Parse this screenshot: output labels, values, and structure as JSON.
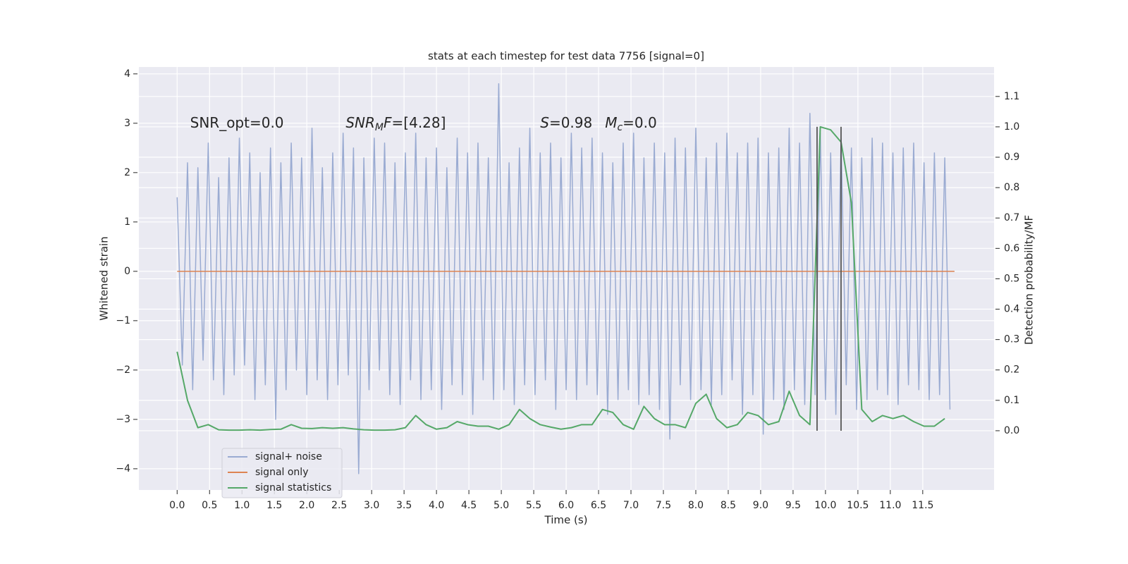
{
  "chart_data": {
    "type": "line",
    "title": "stats at each timestep for test data 7756 [signal=0]",
    "xlabel": "Time (s)",
    "ylabel": "Whitened strain",
    "y2label": "Detection probability/MF",
    "xlim": [
      -0.59,
      12.6
    ],
    "ylim": [
      -4.43,
      4.14
    ],
    "y2lim": [
      -0.195,
      1.197
    ],
    "xticks": [
      {
        "value": 0,
        "label": "0.0"
      },
      {
        "value": 0.5,
        "label": "0.5"
      },
      {
        "value": 1,
        "label": "1.0"
      },
      {
        "value": 1.5,
        "label": "1.5"
      },
      {
        "value": 2,
        "label": "2.0"
      },
      {
        "value": 2.5,
        "label": "2.5"
      },
      {
        "value": 3,
        "label": "3.0"
      },
      {
        "value": 3.5,
        "label": "3.5"
      },
      {
        "value": 4,
        "label": "4.0"
      },
      {
        "value": 4.5,
        "label": "4.5"
      },
      {
        "value": 5,
        "label": "5.0"
      },
      {
        "value": 5.5,
        "label": "5.5"
      },
      {
        "value": 6,
        "label": "6.0"
      },
      {
        "value": 6.5,
        "label": "6.5"
      },
      {
        "value": 7,
        "label": "7.0"
      },
      {
        "value": 7.5,
        "label": "7.5"
      },
      {
        "value": 8,
        "label": "8.0"
      },
      {
        "value": 8.5,
        "label": "8.5"
      },
      {
        "value": 9,
        "label": "9.0"
      },
      {
        "value": 9.5,
        "label": "9.5"
      },
      {
        "value": 10,
        "label": "10.0"
      },
      {
        "value": 10.5,
        "label": "10.5"
      },
      {
        "value": 11,
        "label": "11.0"
      },
      {
        "value": 11.5,
        "label": "11.5"
      }
    ],
    "yticks": [
      {
        "value": -4,
        "label": "−4"
      },
      {
        "value": -3,
        "label": "−3"
      },
      {
        "value": -2,
        "label": "−2"
      },
      {
        "value": -1,
        "label": "−1"
      },
      0,
      1,
      2,
      3,
      4
    ],
    "y2ticks": [
      {
        "value": 0,
        "label": "0.0"
      },
      {
        "value": 0.1,
        "label": "0.1"
      },
      {
        "value": 0.2,
        "label": "0.2"
      },
      {
        "value": 0.3,
        "label": "0.3"
      },
      {
        "value": 0.4,
        "label": "0.4"
      },
      {
        "value": 0.5,
        "label": "0.5"
      },
      {
        "value": 0.6,
        "label": "0.6"
      },
      {
        "value": 0.7,
        "label": "0.7"
      },
      {
        "value": 0.8,
        "label": "0.8"
      },
      {
        "value": 0.9,
        "label": "0.9"
      },
      {
        "value": 1,
        "label": "1.0"
      },
      {
        "value": 1.1,
        "label": "1.1"
      }
    ],
    "grid": true,
    "legend": "lower left",
    "series": [
      {
        "name": "signal+ noise",
        "color": "#9aabd2",
        "x": [
          0,
          0.08,
          0.16,
          0.24,
          0.32,
          0.4,
          0.48,
          0.56,
          0.64,
          0.72,
          0.8,
          0.88,
          0.96,
          1.04,
          1.12,
          1.2,
          1.28,
          1.36,
          1.44,
          1.52,
          1.6,
          1.68,
          1.76,
          1.84,
          1.92,
          2,
          2.08,
          2.16,
          2.24,
          2.32,
          2.4,
          2.48,
          2.56,
          2.64,
          2.72,
          2.8,
          2.88,
          2.96,
          3.04,
          3.12,
          3.2,
          3.28,
          3.36,
          3.44,
          3.52,
          3.6,
          3.68,
          3.76,
          3.84,
          3.92,
          4,
          4.08,
          4.16,
          4.24,
          4.32,
          4.4,
          4.48,
          4.56,
          4.64,
          4.72,
          4.8,
          4.88,
          4.96,
          5.04,
          5.12,
          5.2,
          5.28,
          5.36,
          5.44,
          5.52,
          5.6,
          5.68,
          5.76,
          5.84,
          5.92,
          6,
          6.08,
          6.16,
          6.24,
          6.32,
          6.4,
          6.48,
          6.56,
          6.64,
          6.72,
          6.8,
          6.88,
          6.96,
          7.04,
          7.12,
          7.2,
          7.28,
          7.36,
          7.44,
          7.52,
          7.6,
          7.68,
          7.76,
          7.84,
          7.92,
          8,
          8.08,
          8.16,
          8.24,
          8.32,
          8.4,
          8.48,
          8.56,
          8.64,
          8.72,
          8.8,
          8.88,
          8.96,
          9.04,
          9.12,
          9.2,
          9.28,
          9.36,
          9.44,
          9.52,
          9.6,
          9.68,
          9.76,
          9.84,
          9.92,
          10,
          10.08,
          10.16,
          10.24,
          10.32,
          10.4,
          10.48,
          10.56,
          10.64,
          10.72,
          10.8,
          10.88,
          10.96,
          11.04,
          11.12,
          11.2,
          11.28,
          11.36,
          11.44,
          11.52,
          11.6,
          11.68,
          11.76,
          11.84,
          11.92
        ],
        "values": [
          1.5,
          -1.9,
          2.2,
          -2.4,
          2.1,
          -1.8,
          2.6,
          -2.2,
          1.9,
          -2.5,
          2.3,
          -2.1,
          2.7,
          -1.9,
          2.4,
          -2.6,
          2.0,
          -2.3,
          2.5,
          -3.0,
          2.2,
          -2.4,
          2.6,
          -2.0,
          2.3,
          -2.5,
          2.9,
          -2.2,
          2.1,
          -2.6,
          2.4,
          -2.3,
          2.8,
          -2.1,
          2.5,
          -4.1,
          2.3,
          -2.4,
          2.7,
          -2.0,
          2.6,
          -2.5,
          2.2,
          -2.7,
          2.4,
          -2.2,
          2.8,
          -2.6,
          2.3,
          -2.4,
          2.5,
          -2.8,
          2.1,
          -2.3,
          2.7,
          -2.5,
          2.4,
          -2.9,
          2.6,
          -2.2,
          2.3,
          -2.6,
          3.8,
          -2.4,
          2.2,
          -2.7,
          2.5,
          -2.3,
          2.9,
          -2.5,
          2.4,
          -2.2,
          2.6,
          -2.8,
          2.3,
          -2.4,
          2.8,
          -2.6,
          2.5,
          -2.3,
          2.7,
          -2.5,
          2.4,
          -2.9,
          2.2,
          -2.6,
          2.6,
          -2.4,
          2.8,
          -2.7,
          2.3,
          -2.5,
          2.6,
          -2.8,
          2.4,
          -3.4,
          2.7,
          -2.3,
          2.5,
          -2.6,
          2.9,
          -2.4,
          2.3,
          -2.7,
          2.6,
          -2.5,
          2.8,
          -2.2,
          2.4,
          -2.9,
          2.6,
          -2.5,
          2.7,
          -3.3,
          2.4,
          -2.6,
          2.5,
          -2.8,
          2.9,
          -2.4,
          2.6,
          -2.7,
          3.2,
          -2.5,
          2.8,
          -2.6,
          2.4,
          -2.9,
          2.7,
          -2.3,
          2.5,
          -2.8,
          2.3,
          -2.6,
          2.7,
          -2.4,
          2.6,
          -2.5,
          2.4,
          -2.7,
          2.5,
          -2.3,
          2.6,
          -2.4,
          2.2,
          -2.6,
          2.4,
          -2.5,
          2.3,
          -2.8
        ]
      },
      {
        "name": "signal only",
        "color": "#dd8452",
        "x": [
          0,
          11.99
        ],
        "values": [
          0,
          0
        ]
      },
      {
        "name": "signal statistics",
        "color": "#55a868",
        "axis": "y2",
        "x": [
          0,
          0.16,
          0.32,
          0.48,
          0.64,
          0.8,
          0.96,
          1.12,
          1.28,
          1.44,
          1.6,
          1.76,
          1.92,
          2.08,
          2.24,
          2.4,
          2.56,
          2.72,
          2.88,
          3.04,
          3.2,
          3.36,
          3.52,
          3.68,
          3.84,
          4,
          4.16,
          4.32,
          4.48,
          4.64,
          4.8,
          4.96,
          5.12,
          5.28,
          5.44,
          5.6,
          5.76,
          5.92,
          6.08,
          6.24,
          6.4,
          6.56,
          6.72,
          6.88,
          7.04,
          7.2,
          7.36,
          7.52,
          7.68,
          7.84,
          8,
          8.16,
          8.32,
          8.48,
          8.64,
          8.8,
          8.96,
          9.12,
          9.28,
          9.44,
          9.6,
          9.76,
          9.92,
          10.08,
          10.24,
          10.4,
          10.56,
          10.72,
          10.88,
          11.04,
          11.2,
          11.36,
          11.52,
          11.68,
          11.84
        ],
        "values": [
          0.26,
          0.1,
          0.01,
          0.02,
          0.003,
          0.002,
          0.002,
          0.003,
          0.002,
          0.004,
          0.005,
          0.02,
          0.008,
          0.007,
          0.01,
          0.008,
          0.01,
          0.006,
          0.003,
          0.002,
          0.002,
          0.003,
          0.01,
          0.05,
          0.02,
          0.005,
          0.01,
          0.03,
          0.02,
          0.015,
          0.015,
          0.005,
          0.02,
          0.07,
          0.04,
          0.02,
          0.012,
          0.005,
          0.01,
          0.02,
          0.02,
          0.07,
          0.06,
          0.02,
          0.005,
          0.08,
          0.04,
          0.02,
          0.02,
          0.01,
          0.09,
          0.12,
          0.04,
          0.01,
          0.02,
          0.06,
          0.05,
          0.02,
          0.03,
          0.13,
          0.05,
          0.02,
          1.0,
          0.99,
          0.95,
          0.75,
          0.07,
          0.03,
          0.05,
          0.04,
          0.05,
          0.03,
          0.015,
          0.015,
          0.04
        ]
      }
    ],
    "vlines": [
      9.87,
      10.24
    ],
    "vline_range": [
      0,
      1
    ],
    "vline_color": "#555555",
    "annotations": [
      {
        "x": 0.2,
        "y": 3,
        "parts": [
          {
            "text": "SNR_opt=0.0"
          }
        ]
      },
      {
        "x": 2.6,
        "y": 3,
        "parts": [
          {
            "text": "SNR",
            "italic": true
          },
          {
            "text": "M",
            "italic": true,
            "sub": true
          },
          {
            "text": "F",
            "italic": true
          },
          {
            "text": "=[4.28]"
          }
        ]
      },
      {
        "x": 5.6,
        "y": 3,
        "parts": [
          {
            "text": "S",
            "italic": true
          },
          {
            "text": "=0.98"
          }
        ]
      },
      {
        "x": 6.6,
        "y": 3,
        "parts": [
          {
            "text": "M",
            "italic": true
          },
          {
            "text": "c",
            "italic": true,
            "sub": true
          },
          {
            "text": "=0.0"
          }
        ]
      }
    ]
  }
}
